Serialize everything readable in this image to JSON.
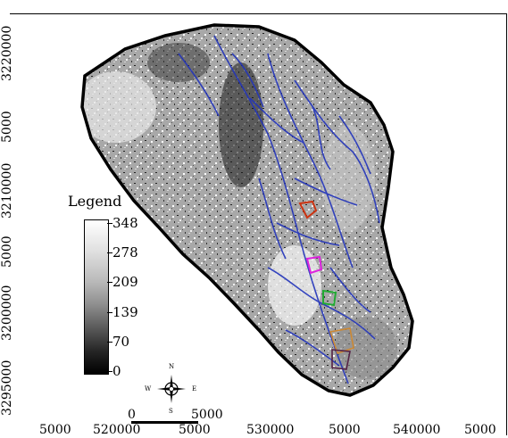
{
  "map": {
    "y_labels": [
      "3220000",
      "5000",
      "3210000",
      "5000",
      "3200000",
      "3295000"
    ],
    "x_labels": [
      "5000",
      "520000",
      "5000",
      "530000",
      "5000",
      "540000",
      "5000"
    ],
    "legend": {
      "title": "Legend",
      "ticks": [
        "348",
        "278",
        "209",
        "139",
        "70",
        "0"
      ]
    },
    "scale_bar": {
      "left": "0",
      "right": "5000"
    },
    "compass": {
      "n": "N",
      "s": "S",
      "e": "E",
      "w": "W"
    },
    "colors": {
      "basin_fill": "#9a9a9a",
      "outline": "#000000",
      "streams": "#2233bb"
    }
  }
}
